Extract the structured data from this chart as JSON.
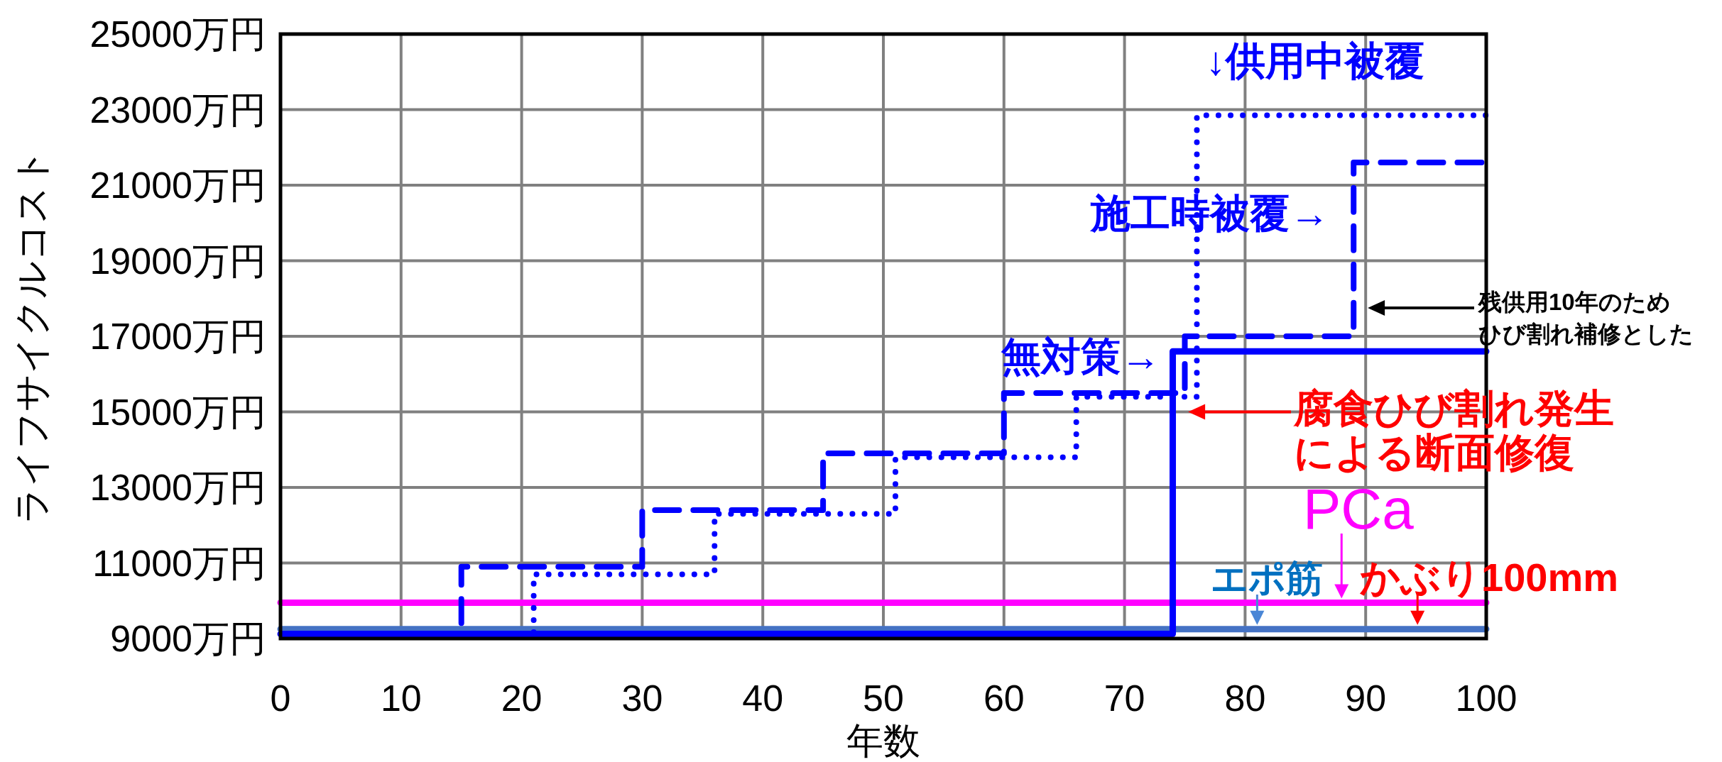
{
  "chart_data": {
    "type": "step",
    "xlabel": "年数",
    "ylabel": "ライフサイクルコスト",
    "xlim": [
      0,
      100
    ],
    "xticks": [
      0,
      10,
      20,
      30,
      40,
      50,
      60,
      70,
      80,
      90,
      100
    ],
    "ylim": [
      9000,
      25000
    ],
    "yticks": [
      {
        "value": 9000,
        "label": "9000万円"
      },
      {
        "value": 11000,
        "label": "11000万円"
      },
      {
        "value": 13000,
        "label": "13000万円"
      },
      {
        "value": 15000,
        "label": "15000万円"
      },
      {
        "value": 17000,
        "label": "17000万円"
      },
      {
        "value": 19000,
        "label": "19000万円"
      },
      {
        "value": 21000,
        "label": "21000万円"
      },
      {
        "value": 23000,
        "label": "23000万円"
      },
      {
        "value": 25000,
        "label": "25000万円"
      }
    ],
    "grid": true,
    "series": [
      {
        "type": "line",
        "color": "#4472c4",
        "line_style": "solid",
        "x": [
          0,
          100
        ],
        "values": [
          9250,
          9250
        ]
      },
      {
        "type": "line",
        "color": "#ff00ff",
        "line_style": "solid",
        "x": [
          0,
          100
        ],
        "values": [
          9950,
          9950
        ]
      },
      {
        "color": "#0000ff",
        "line_style": "dotted",
        "x": [
          0,
          21,
          36,
          51,
          66,
          76,
          100
        ],
        "values": [
          9120,
          10700,
          12300,
          13800,
          15400,
          22850,
          22850
        ]
      },
      {
        "color": "#0000ff",
        "line_style": "dashed",
        "x": [
          0,
          15,
          30,
          45,
          60,
          75,
          89,
          100
        ],
        "values": [
          9120,
          10900,
          12400,
          13900,
          15500,
          17000,
          21600,
          21600
        ]
      },
      {
        "color": "#0000ff",
        "line_style": "solid",
        "x": [
          0,
          74,
          100
        ],
        "values": [
          9120,
          16600,
          16600
        ]
      }
    ],
    "annotations": [
      "↓供用中被覆",
      "施工時被覆→",
      "無対策→",
      "残供用10年のためひび割れ補修とした",
      "腐食ひび割れ発生による断面修復",
      "PCa",
      "エポ筋",
      "かぶり100mm"
    ]
  }
}
